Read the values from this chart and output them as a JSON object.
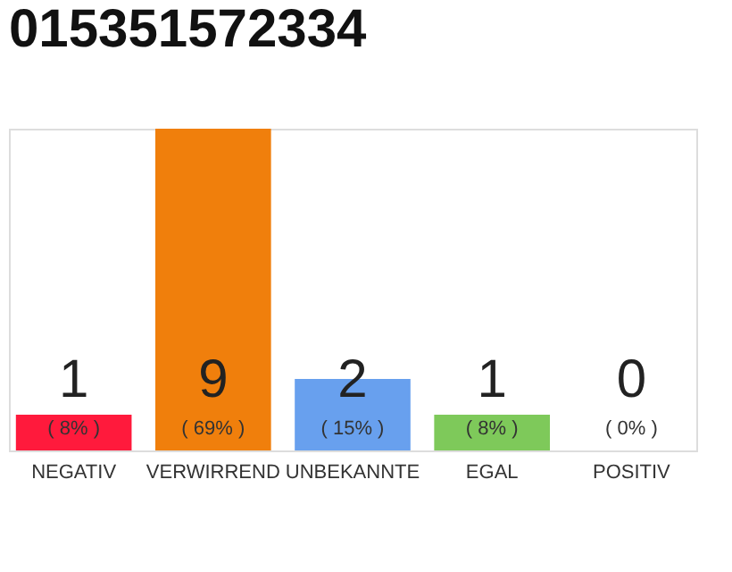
{
  "chart_data": {
    "type": "bar",
    "title": "015351572334",
    "categories": [
      "NEGATIV",
      "VERWIRREND",
      "UNBEKANNTE",
      "EGAL",
      "POSITIV"
    ],
    "values": [
      1,
      9,
      2,
      1,
      0
    ],
    "colors": [
      "#ff1a3c",
      "#f07f0c",
      "#68a0ee",
      "#7ec95a",
      "#2db34a"
    ],
    "ylim": [
      0,
      9
    ],
    "data_labels": true,
    "tick_labels": "x",
    "grid": false,
    "annotations": [
      "( 8% )",
      "( 69% )",
      "( 15% )",
      "( 8% )",
      "( 0% )"
    ]
  }
}
